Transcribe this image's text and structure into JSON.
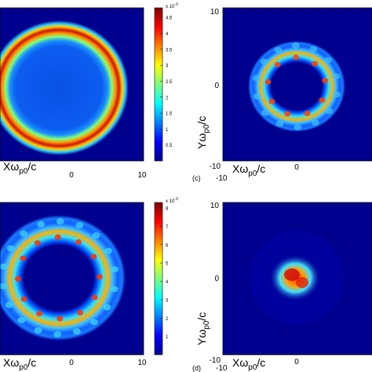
{
  "colormap": [
    "#00008f",
    "#0000ff",
    "#007fff",
    "#00ffff",
    "#7fff7f",
    "#ffff00",
    "#ff7f00",
    "#ff0000",
    "#7f0000"
  ],
  "labels": {
    "x_axis": "Xω",
    "x_sub": "p0",
    "x_tail": "/c",
    "y_axis": "Yω",
    "y_sub": "p0",
    "y_tail": "/c",
    "panel_c": "(c)",
    "panel_d": "(d)"
  },
  "chart_data": [
    {
      "type": "heatmap",
      "panel": "top-left",
      "description_shape": "uniform disc with bright outer ring",
      "xlabel": "Xωp0/c",
      "x_ticks": [
        "0",
        "10"
      ],
      "colorbar": {
        "multiplier": "x 10",
        "exponent": "-3",
        "ticks": [
          "0.5",
          "1",
          "1.5",
          "2",
          "2.5",
          "3",
          "3.5",
          "4",
          "4.5"
        ],
        "range": [
          0,
          4.8
        ]
      }
    },
    {
      "type": "heatmap",
      "panel": "top-right",
      "label": "(c)",
      "xlabel": "Xωp0/c",
      "ylabel": "Yωp0/c",
      "x_ticks": [
        "-10",
        "0"
      ],
      "y_ticks": [
        "10",
        "0",
        "-10"
      ]
    },
    {
      "type": "heatmap",
      "panel": "bottom-left",
      "xlabel": "Xωp0/c",
      "x_ticks": [
        "0",
        "10"
      ],
      "colorbar": {
        "multiplier": "x 10",
        "exponent": "-3",
        "ticks": [
          "1",
          "2",
          "3",
          "4",
          "5",
          "6",
          "7",
          "8"
        ],
        "range": [
          0,
          8.3
        ]
      }
    },
    {
      "type": "heatmap",
      "panel": "bottom-right",
      "label": "(d)",
      "xlabel": "Xωp0/c",
      "ylabel": "Yωp0/c",
      "x_ticks": [
        "-10",
        "0"
      ],
      "y_ticks": [
        "10",
        "0",
        "-10"
      ]
    }
  ]
}
